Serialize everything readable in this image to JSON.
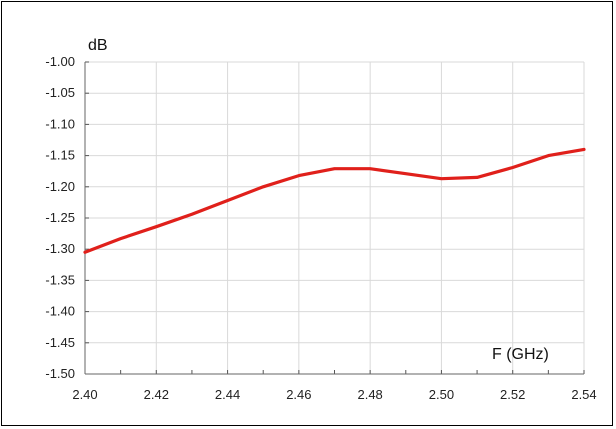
{
  "chart_data": {
    "type": "line",
    "title": "",
    "ylabel": "dB",
    "xlabel": "F (GHz)",
    "xlim": [
      2.4,
      2.54
    ],
    "ylim": [
      -1.5,
      -1.0
    ],
    "grid": true,
    "x_ticks": [
      "2.40",
      "2.42",
      "2.44",
      "2.46",
      "2.48",
      "2.50",
      "2.52",
      "2.54"
    ],
    "y_ticks": [
      "-1.00",
      "-1.05",
      "-1.10",
      "-1.15",
      "-1.20",
      "-1.25",
      "-1.30",
      "-1.35",
      "-1.40",
      "-1.45",
      "-1.50"
    ],
    "series": [
      {
        "color": "#e0201b",
        "x": [
          2.4,
          2.41,
          2.42,
          2.43,
          2.44,
          2.45,
          2.46,
          2.47,
          2.48,
          2.49,
          2.5,
          2.51,
          2.52,
          2.53,
          2.54
        ],
        "y": [
          -1.305,
          -1.283,
          -1.264,
          -1.244,
          -1.222,
          -1.2,
          -1.182,
          -1.171,
          -1.171,
          -1.179,
          -1.187,
          -1.185,
          -1.169,
          -1.15,
          -1.14
        ]
      }
    ]
  }
}
